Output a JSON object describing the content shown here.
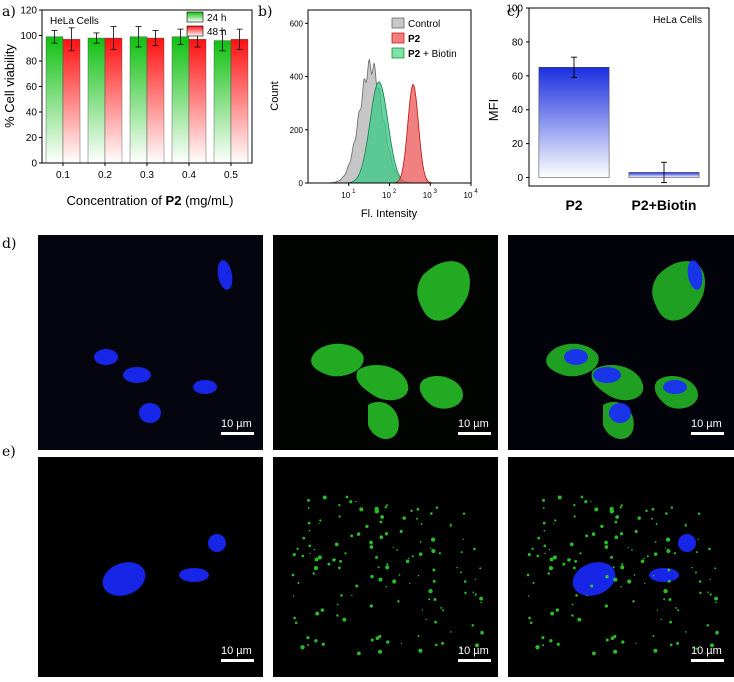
{
  "panel_labels": {
    "a": "a)",
    "b": "b)",
    "c": "c)",
    "d": "d)",
    "e": "e)"
  },
  "chart_data": [
    {
      "type": "bar",
      "panel": "a",
      "annotation": "HeLa Cells",
      "xlabel_prefix": "Concentration of ",
      "xlabel_bold": "P2",
      "xlabel_suffix": " (mg/mL)",
      "ylabel": "% Cell viability",
      "categories": [
        "0.1",
        "0.2",
        "0.3",
        "0.4",
        "0.5"
      ],
      "ylim": [
        0,
        120
      ],
      "yticks": [
        "0",
        "20",
        "40",
        "60",
        "80",
        "100",
        "120"
      ],
      "series": [
        {
          "name": "24 h",
          "color": "#22c022",
          "values": [
            99,
            98,
            99,
            99,
            96
          ],
          "errors": [
            5,
            4,
            8,
            6,
            8
          ]
        },
        {
          "name": "48 h",
          "color": "#e82020",
          "values": [
            97,
            98,
            98,
            97,
            97
          ],
          "errors": [
            9,
            9,
            6,
            6,
            8
          ]
        }
      ],
      "legend": "top-right"
    },
    {
      "type": "area",
      "panel": "b",
      "xlabel": "Fl. Intensity",
      "ylabel": "Count",
      "ylim": [
        0,
        650
      ],
      "yticks": [
        "0",
        "200",
        "400",
        "600"
      ],
      "xscale": "log",
      "xlim": [
        1,
        10000
      ],
      "xtick_base": "10",
      "xtick_exps": [
        "1",
        "2",
        "3",
        "4"
      ],
      "legend": "top-right",
      "series": [
        {
          "name": "Control",
          "bold": false,
          "color": "#888888",
          "peak_x": 35,
          "peak_y": 440
        },
        {
          "name": "P2",
          "bold": true,
          "color": "#e84040",
          "peak_x": 380,
          "peak_y": 370
        },
        {
          "name": "P2 + Biotin",
          "bold_part": "P2",
          "rest": " + Biotin",
          "color": "#30c080",
          "peak_x": 55,
          "peak_y": 380
        }
      ]
    },
    {
      "type": "bar",
      "panel": "c",
      "annotation": "HeLa Cells",
      "ylabel": "MFI",
      "categories": [
        "P2",
        "P2+Biotin"
      ],
      "values": [
        65,
        3
      ],
      "errors": [
        6,
        6
      ],
      "ylim": [
        -5,
        100
      ],
      "yticks": [
        "0",
        "20",
        "40",
        "60",
        "80",
        "100"
      ],
      "color": "#2040e0"
    }
  ],
  "micrographs": {
    "scale_label": "10 µm",
    "row_d": [
      "nucleus-stain",
      "green-stain",
      "merged"
    ],
    "row_e": [
      "nucleus-stain",
      "green-stain",
      "merged"
    ]
  }
}
